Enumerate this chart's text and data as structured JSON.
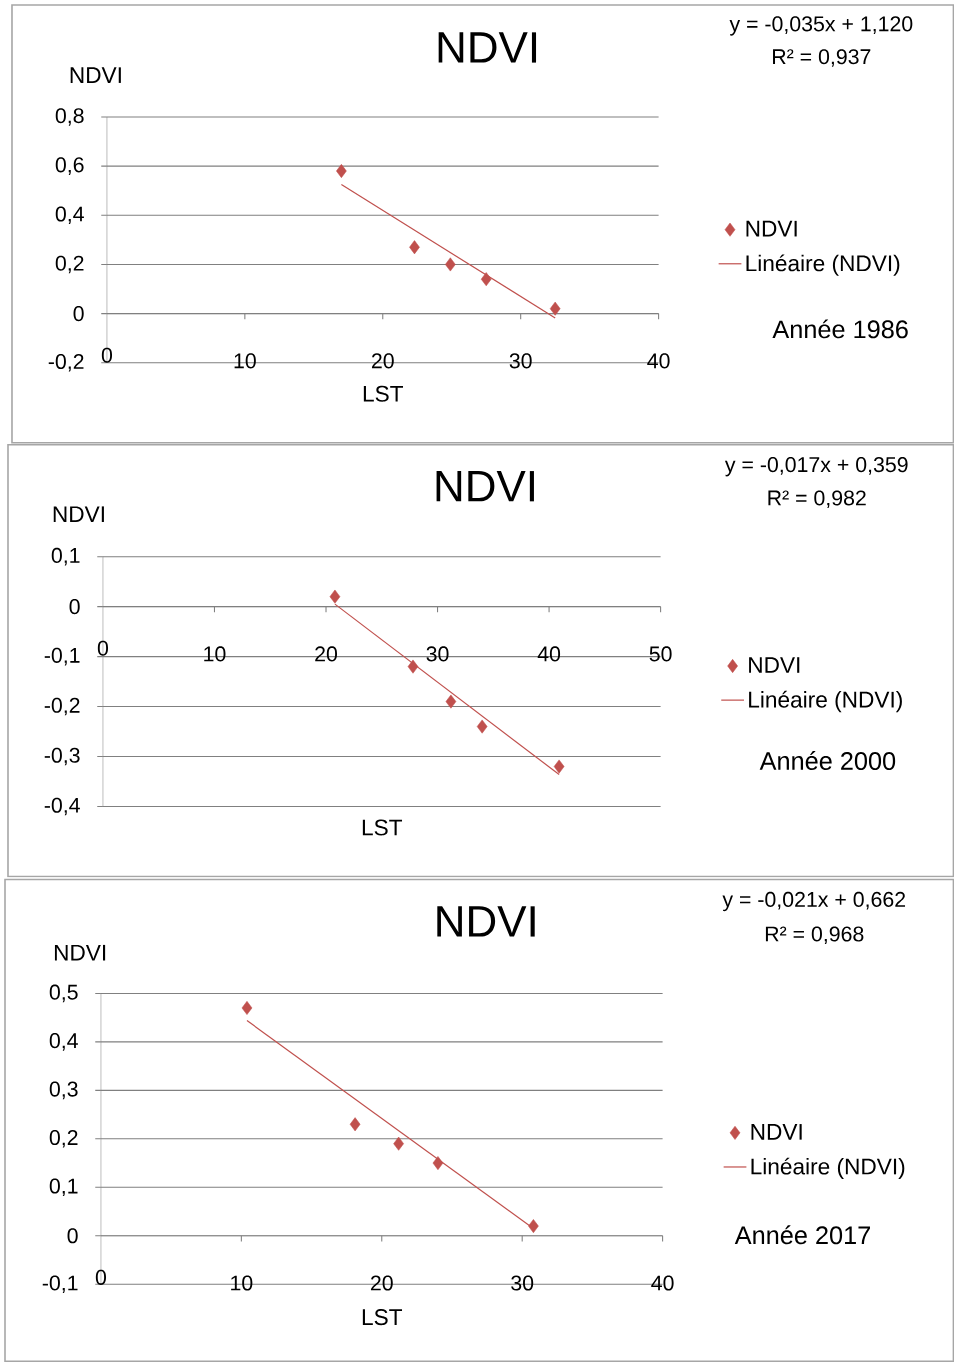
{
  "chart_data": [
    {
      "type": "scatter",
      "title": "NDVI",
      "xlabel": "LST",
      "ylabel": "NDVI",
      "xlim": [
        0,
        40
      ],
      "xticks": [
        0,
        10,
        20,
        30,
        40
      ],
      "ylim": [
        -0.2,
        0.8
      ],
      "yticks": [
        {
          "value": -0.2,
          "label": "-0,2"
        },
        {
          "value": 0,
          "label": "0"
        },
        {
          "value": 0.2,
          "label": "0,2"
        },
        {
          "value": 0.4,
          "label": "0,4"
        },
        {
          "value": 0.6,
          "label": "0,6"
        },
        {
          "value": 0.8,
          "label": "0,8"
        }
      ],
      "grid": "y",
      "legend": "right",
      "series": [
        {
          "name": "NDVI",
          "color": "#c0504d",
          "marker": "diamond",
          "x": [
            17.0,
            22.3,
            24.9,
            27.5,
            32.5
          ],
          "values": [
            0.58,
            0.27,
            0.2,
            0.14,
            0.02
          ]
        },
        {
          "name": "Linéaire (NDVI)",
          "type": "line",
          "color": "#c0504d",
          "marker": "none",
          "line_style": "solid",
          "x": [
            17.0,
            32.5
          ],
          "values": [
            0.525,
            -0.018
          ]
        }
      ],
      "annotations": [
        "y = -0,035x + 1,120",
        "R² = 0,937",
        "Année 1986"
      ]
    },
    {
      "type": "scatter",
      "title": "NDVI",
      "xlabel": "LST",
      "ylabel": "NDVI",
      "xlim": [
        0,
        50
      ],
      "xticks": [
        0,
        10,
        20,
        30,
        40,
        50
      ],
      "ylim": [
        -0.4,
        0.1
      ],
      "yticks": [
        {
          "value": -0.4,
          "label": "-0,4"
        },
        {
          "value": -0.3,
          "label": "-0,3"
        },
        {
          "value": -0.2,
          "label": "-0,2"
        },
        {
          "value": -0.1,
          "label": "-0,1"
        },
        {
          "value": 0,
          "label": "0"
        },
        {
          "value": 0.1,
          "label": "0,1"
        }
      ],
      "grid": "y",
      "legend": "right",
      "series": [
        {
          "name": "NDVI",
          "color": "#c0504d",
          "marker": "diamond",
          "x": [
            20.8,
            27.8,
            31.2,
            34.0,
            40.9
          ],
          "values": [
            0.02,
            -0.12,
            -0.19,
            -0.24,
            -0.32
          ]
        },
        {
          "name": "Linéaire (NDVI)",
          "type": "line",
          "color": "#c0504d",
          "marker": "none",
          "line_style": "solid",
          "x": [
            20.8,
            40.9
          ],
          "values": [
            0.005,
            -0.336
          ]
        }
      ],
      "annotations": [
        "y = -0,017x + 0,359",
        "R² = 0,982",
        "Année 2000"
      ]
    },
    {
      "type": "scatter",
      "title": "NDVI",
      "xlabel": "LST",
      "ylabel": "NDVI",
      "xlim": [
        0,
        40
      ],
      "xticks": [
        0,
        10,
        20,
        30,
        40
      ],
      "ylim": [
        -0.1,
        0.5
      ],
      "yticks": [
        {
          "value": -0.1,
          "label": "-0,1"
        },
        {
          "value": 0,
          "label": "0"
        },
        {
          "value": 0.1,
          "label": "0,1"
        },
        {
          "value": 0.2,
          "label": "0,2"
        },
        {
          "value": 0.3,
          "label": "0,3"
        },
        {
          "value": 0.4,
          "label": "0,4"
        },
        {
          "value": 0.5,
          "label": "0,5"
        }
      ],
      "grid": "y",
      "legend": "right",
      "series": [
        {
          "name": "NDVI",
          "color": "#c0504d",
          "marker": "diamond",
          "x": [
            10.4,
            18.1,
            21.2,
            24.0,
            30.8
          ],
          "values": [
            0.47,
            0.23,
            0.19,
            0.15,
            0.02
          ]
        },
        {
          "name": "Linéaire (NDVI)",
          "type": "line",
          "color": "#c0504d",
          "marker": "none",
          "line_style": "solid",
          "x": [
            10.4,
            30.8
          ],
          "values": [
            0.444,
            0.015
          ]
        }
      ],
      "annotations": [
        "y = -0,021x + 0,662",
        "R² = 0,968",
        "Année 2017"
      ]
    }
  ]
}
